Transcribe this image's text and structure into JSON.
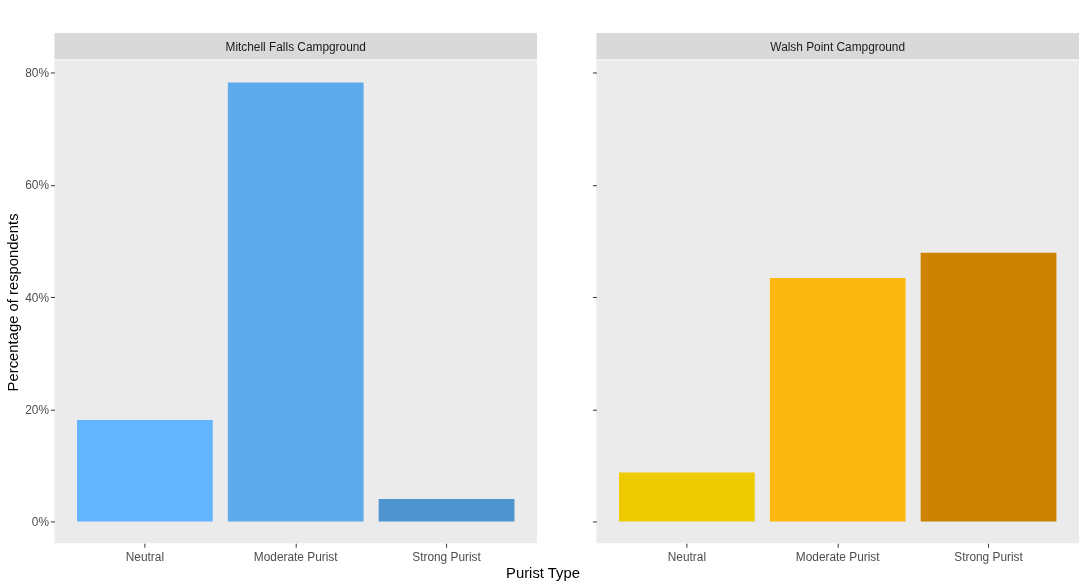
{
  "chart_data": [
    {
      "type": "bar",
      "title": "Mitchell Falls Campground",
      "xlabel": "Purist Type",
      "ylabel": "Percentage of respondents",
      "categories": [
        "Neutral",
        "Moderate Purist",
        "Strong Purist"
      ],
      "values": [
        18.1,
        78.3,
        4.0
      ],
      "colors": [
        "#63b5ff",
        "#5eabeb",
        "#4e94cf"
      ],
      "ylim": [
        -3.9,
        82.2
      ],
      "yticks": [
        {
          "value": 0,
          "label": "0%"
        },
        {
          "value": 20,
          "label": "20%"
        },
        {
          "value": 40,
          "label": "40%"
        },
        {
          "value": 60,
          "label": "60%"
        },
        {
          "value": 80,
          "label": "80%"
        }
      ],
      "grid": false
    },
    {
      "type": "bar",
      "title": "Walsh Point Campground",
      "categories": [
        "Neutral",
        "Moderate Purist",
        "Strong Purist"
      ],
      "values": [
        8.7,
        43.4,
        47.9
      ],
      "colors": [
        "#eecb00",
        "#fdb810",
        "#cc8400"
      ],
      "ylim": [
        -3.9,
        82.2
      ],
      "yticks": [
        {
          "value": 0,
          "label": null
        },
        {
          "value": 20,
          "label": null
        },
        {
          "value": 40,
          "label": null
        },
        {
          "value": 60,
          "label": null
        },
        {
          "value": 80,
          "label": null
        }
      ],
      "tick_labels": "x",
      "grid": false
    }
  ]
}
